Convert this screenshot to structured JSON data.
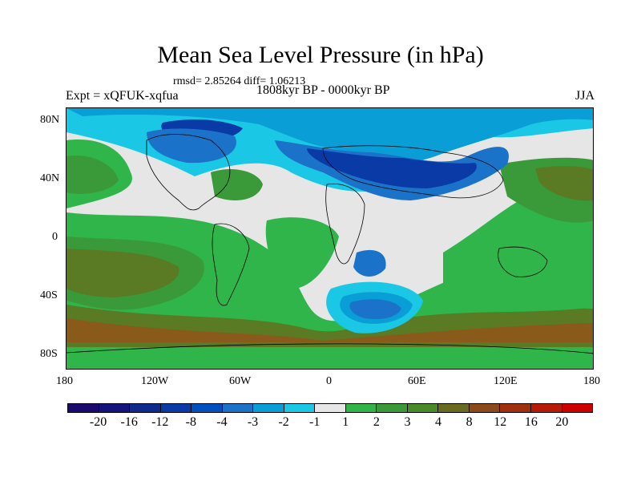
{
  "title": "Mean Sea Level Pressure (in hPa)",
  "stats": "rmsd= 2.85264 diff= 1.06213",
  "experiment": "Expt = xQFUK-xqfua",
  "period": "1808kyr BP - 0000kyr BP",
  "season": "JJA",
  "lat_labels": [
    "80N",
    "40N",
    "0",
    "40S",
    "80S"
  ],
  "lon_labels": [
    "180",
    "120W",
    "60W",
    "0",
    "60E",
    "120E",
    "180"
  ],
  "colorbar": {
    "labels": [
      "-20",
      "-16",
      "-12",
      "-8",
      "-4",
      "-3",
      "-2",
      "-1",
      "1",
      "2",
      "3",
      "4",
      "8",
      "12",
      "16",
      "20"
    ],
    "colors": [
      "#1a0a6e",
      "#14147a",
      "#0d2a8c",
      "#0a3aa6",
      "#0050c0",
      "#1a73c8",
      "#0a9ed6",
      "#1ac8e6",
      "#e6e6e6",
      "#2fb54a",
      "#3a9a3a",
      "#4a8a2a",
      "#6a6a20",
      "#8a4a1a",
      "#a03010",
      "#b81a08",
      "#cc0000"
    ]
  },
  "legend_colors": {
    "neutral": "#e6e6e6",
    "light_green": "#2fb54a",
    "green": "#3a9a3a",
    "olive": "#5a7a24",
    "brown": "#8a5a1a",
    "cyan": "#1ac8e6",
    "mid_blue": "#0a9ed6",
    "blue": "#1a73c8",
    "dark_blue": "#0a3aa6"
  }
}
